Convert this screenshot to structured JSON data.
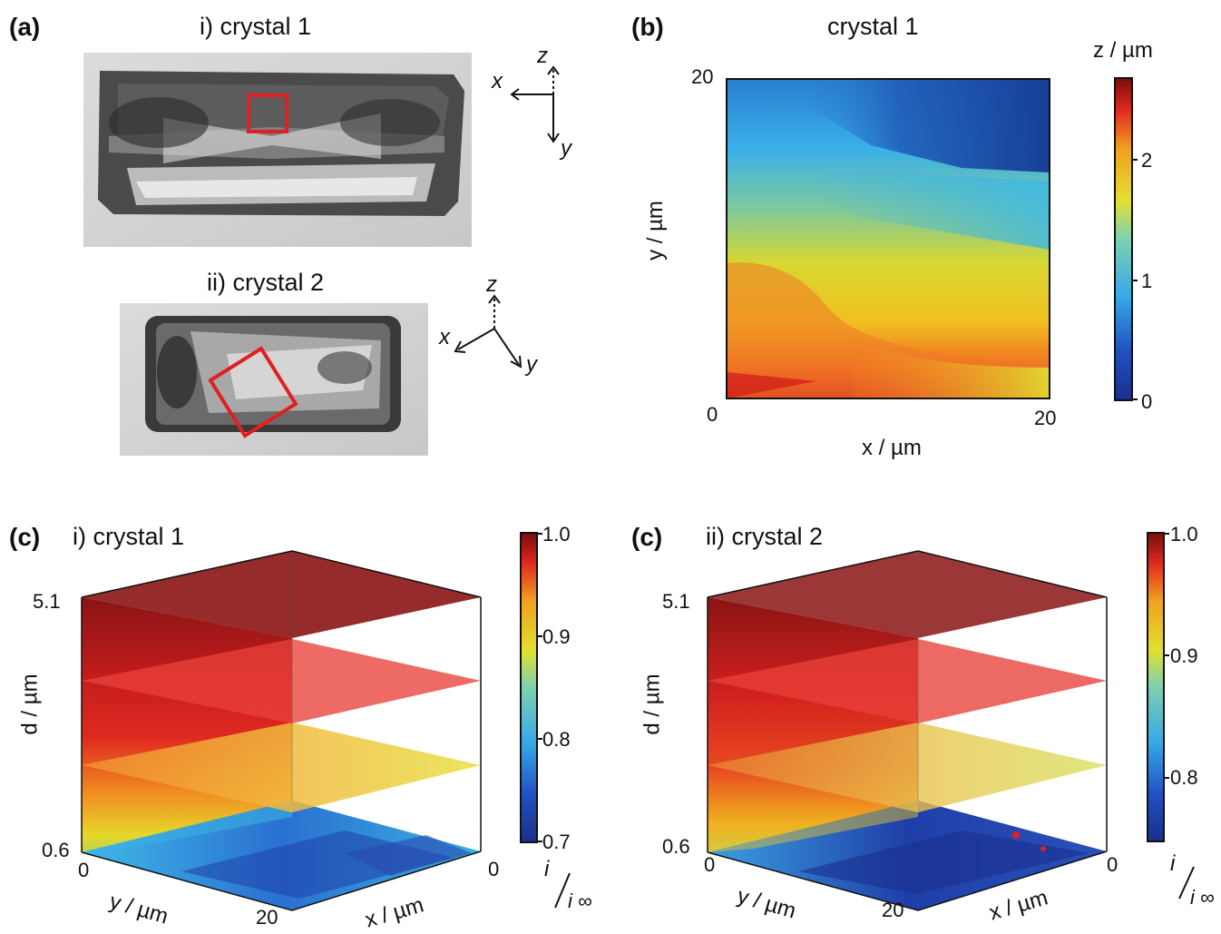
{
  "panel_a": {
    "label": "(a)",
    "crystal1_title": "i) crystal 1",
    "crystal2_title": "ii) crystal 2",
    "axes1": {
      "x": "x",
      "y": "y",
      "z": "z"
    },
    "axes2": {
      "x": "x",
      "y": "y",
      "z": "z"
    }
  },
  "panel_b": {
    "label": "(b)",
    "title": "crystal 1",
    "xlabel": "x / µm",
    "ylabel": "y / µm",
    "x_ticks": [
      "0",
      "20"
    ],
    "y_ticks": [
      "0",
      "20"
    ],
    "colorbar_label": "z / µm",
    "colorbar_ticks": [
      "0",
      "1",
      "2"
    ]
  },
  "panel_c1": {
    "label": "(c)",
    "title": "i) crystal 1",
    "d_label": "d / µm",
    "d_ticks": [
      "0.6",
      "5.1"
    ],
    "y_label": "y / µm",
    "y_ticks": [
      "0",
      "20"
    ],
    "x_label": "x / µm",
    "x_ticks": [
      "0"
    ],
    "colorbar_ticks": [
      "0.7",
      "0.8",
      "0.9",
      "1.0"
    ],
    "colorbar_label_num": "i",
    "colorbar_label_den": "i ∞"
  },
  "panel_c2": {
    "label": "(c)",
    "title": "ii) crystal 2",
    "d_label": "d / µm",
    "d_ticks": [
      "0.6",
      "5.1"
    ],
    "y_label": "y / µm",
    "y_ticks": [
      "0",
      "20"
    ],
    "x_label": "x / µm",
    "x_ticks": [
      "0"
    ],
    "colorbar_ticks": [
      "0.8",
      "0.9",
      "1.0"
    ],
    "colorbar_label_num": "i",
    "colorbar_label_den": "i ∞"
  },
  "colors": {
    "box_red": "#e02020",
    "jet_dark_red": "#7a0c0c",
    "jet_red": "#d8222a",
    "jet_yellow": "#e8e020",
    "jet_cyan": "#3ab8e8",
    "jet_blue": "#1a3f9a"
  }
}
